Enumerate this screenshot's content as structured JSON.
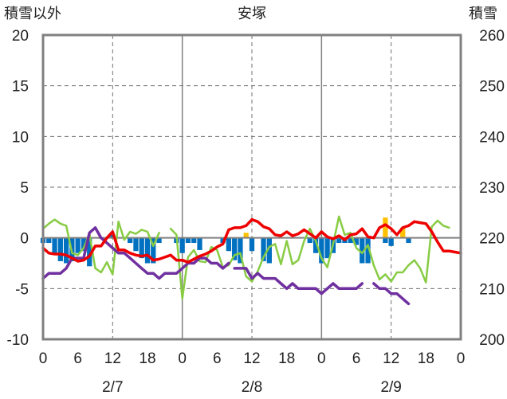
{
  "chart_data": {
    "type": "bar+line",
    "title": "安塚",
    "y_left_label": "積雪以外",
    "y_right_label": "積雪",
    "y_left_range": [
      -10,
      20
    ],
    "y_left_ticks": [
      "20",
      "15",
      "10",
      "5",
      "0",
      "-5",
      "-10"
    ],
    "y_right_range": [
      200,
      260
    ],
    "y_right_ticks": [
      "260",
      "250",
      "240",
      "230",
      "220",
      "210",
      "200"
    ],
    "x_range_hours": [
      0,
      72
    ],
    "x_tick_labels": [
      "0",
      "6",
      "12",
      "18",
      "0",
      "6",
      "12",
      "18",
      "0",
      "6",
      "12",
      "18",
      "0"
    ],
    "x_date_labels": [
      "2/7",
      "2/8",
      "2/9"
    ],
    "grid": "dashed",
    "colors": {
      "temperature": "#ee0000",
      "humidity_line": "#88cc44",
      "snow_depth": "#7030a0",
      "precip_bar": "#0070c0",
      "snowfall_bar": "#ffc000",
      "zero_line": "#808080",
      "frame": "#808080"
    },
    "series": [
      {
        "id": "temperature",
        "kind": "line",
        "axis": "left",
        "points": [
          [
            0,
            -1
          ],
          [
            1,
            -1.5
          ],
          [
            2,
            -1.6
          ],
          [
            3,
            -1.6
          ],
          [
            4,
            -1.7
          ],
          [
            5,
            -2
          ],
          [
            6,
            -2.3
          ],
          [
            7,
            -2.2
          ],
          [
            8,
            -1.8
          ],
          [
            9,
            -0.8
          ],
          [
            10,
            -0.8
          ],
          [
            11,
            0
          ],
          [
            12,
            0.6
          ],
          [
            13,
            -1.2
          ],
          [
            14,
            -1.2
          ],
          [
            15,
            -1.5
          ],
          [
            16,
            -1.7
          ],
          [
            17,
            -1.8
          ],
          [
            18,
            -1.7
          ],
          [
            19,
            -2.2
          ],
          [
            20,
            -2.1
          ],
          [
            21,
            -1.9
          ],
          [
            22,
            -1.7
          ],
          [
            23,
            -2.2
          ],
          [
            24,
            -2.2
          ],
          [
            25,
            -2.4
          ],
          [
            26,
            -2.1
          ],
          [
            27,
            -1.8
          ],
          [
            28,
            -1.6
          ],
          [
            29,
            -1.3
          ],
          [
            30,
            -0.9
          ],
          [
            31,
            -0.6
          ],
          [
            32,
            0.8
          ],
          [
            33,
            1
          ],
          [
            34,
            1
          ],
          [
            35,
            1.2
          ],
          [
            36,
            1.8
          ],
          [
            37,
            1.6
          ],
          [
            38,
            1.1
          ],
          [
            39,
            0.9
          ],
          [
            40,
            0.3
          ],
          [
            41,
            0.2
          ],
          [
            42,
            0.6
          ],
          [
            43,
            0.2
          ],
          [
            44,
            0.4
          ],
          [
            45,
            0.8
          ],
          [
            46,
            0.4
          ],
          [
            47,
            0
          ],
          [
            48,
            0.6
          ],
          [
            49,
            0.1
          ],
          [
            50,
            -0.1
          ],
          [
            51,
            0.2
          ],
          [
            52,
            -0.2
          ],
          [
            53,
            0.3
          ],
          [
            54,
            0.4
          ],
          [
            55,
            0.9
          ],
          [
            56,
            0.1
          ],
          [
            57,
            0
          ],
          [
            58,
            1
          ],
          [
            59,
            1.3
          ],
          [
            60,
            0.9
          ],
          [
            61,
            0.3
          ],
          [
            62,
            1
          ],
          [
            63,
            1.2
          ],
          [
            64,
            1.6
          ],
          [
            65,
            1.5
          ],
          [
            66,
            1.4
          ],
          [
            67,
            0.6
          ],
          [
            68,
            -0.4
          ],
          [
            69,
            -1.3
          ],
          [
            70,
            -1.3
          ],
          [
            71,
            -1.4
          ],
          [
            72,
            -1.5
          ]
        ]
      },
      {
        "id": "humidity_line",
        "kind": "line",
        "axis": "left",
        "segments": [
          [
            [
              0,
              0.9
            ],
            [
              1,
              1.4
            ],
            [
              2,
              1.8
            ],
            [
              3,
              1.4
            ],
            [
              4,
              1.2
            ],
            [
              5,
              -1.5
            ],
            [
              6,
              -1.7
            ],
            [
              7,
              -1
            ],
            [
              8,
              0.4
            ],
            [
              9,
              -3
            ],
            [
              10,
              -3.4
            ],
            [
              11,
              -2.4
            ],
            [
              12,
              -3.6
            ],
            [
              13,
              1.6
            ],
            [
              14,
              -0.2
            ],
            [
              15,
              0.6
            ],
            [
              16,
              0.4
            ],
            [
              17,
              0.8
            ],
            [
              18,
              0.6
            ],
            [
              19,
              -0.8
            ],
            [
              20,
              0.5
            ]
          ],
          [
            [
              22,
              0.9
            ],
            [
              23,
              0.3
            ],
            [
              24,
              -6
            ],
            [
              25,
              -1.9
            ],
            [
              26,
              -1.2
            ],
            [
              27,
              -2.3
            ],
            [
              28,
              -2.4
            ],
            [
              29,
              -0.9
            ],
            [
              30,
              -1.2
            ],
            [
              31,
              -2.9
            ],
            [
              32,
              -2.7
            ],
            [
              33,
              -1.7
            ],
            [
              34,
              -1.5
            ],
            [
              35,
              -3.8
            ],
            [
              36,
              -4.3
            ],
            [
              37,
              -3.3
            ],
            [
              38,
              -1.9
            ],
            [
              39,
              -0.9
            ],
            [
              40,
              -0.6
            ],
            [
              41,
              -2.6
            ],
            [
              42,
              -0.3
            ],
            [
              43,
              -2.6
            ],
            [
              44,
              -2.2
            ],
            [
              45,
              -0.3
            ],
            [
              46,
              0.9
            ],
            [
              47,
              -0.3
            ],
            [
              48,
              -2
            ],
            [
              49,
              -2.9
            ],
            [
              50,
              -0.6
            ],
            [
              51,
              2.1
            ],
            [
              52,
              0.3
            ],
            [
              53,
              0.5
            ],
            [
              54,
              -1
            ],
            [
              55,
              -1.5
            ],
            [
              56,
              -0.7
            ],
            [
              57,
              -2.7
            ],
            [
              58,
              -4.1
            ],
            [
              59,
              -3.6
            ],
            [
              60,
              -4.3
            ],
            [
              61,
              -3.4
            ],
            [
              62,
              -3.4
            ],
            [
              63,
              -2.7
            ],
            [
              64,
              -2.2
            ],
            [
              65,
              -3
            ],
            [
              66,
              -4.4
            ],
            [
              67,
              1.1
            ],
            [
              68,
              1.7
            ],
            [
              69,
              1.2
            ],
            [
              70,
              1
            ]
          ]
        ]
      },
      {
        "id": "snow_depth",
        "kind": "line",
        "axis": "right",
        "segments": [
          [
            [
              0,
              212
            ],
            [
              1,
              213
            ],
            [
              2,
              213
            ],
            [
              3,
              213
            ],
            [
              4,
              214
            ],
            [
              5,
              216
            ],
            [
              6,
              216
            ],
            [
              7,
              216
            ],
            [
              8,
              221
            ],
            [
              9,
              222
            ],
            [
              10,
              220
            ],
            [
              11,
              219
            ],
            [
              12,
              218
            ],
            [
              13,
              217
            ],
            [
              14,
              217
            ],
            [
              15,
              216
            ],
            [
              16,
              215
            ],
            [
              17,
              214
            ],
            [
              18,
              213
            ],
            [
              19,
              213
            ],
            [
              20,
              212
            ],
            [
              21,
              213
            ],
            [
              22,
              213
            ],
            [
              23,
              213
            ],
            [
              24,
              214
            ],
            [
              25,
              215
            ],
            [
              26,
              215
            ],
            [
              27,
              216
            ],
            [
              28,
              216
            ],
            [
              29,
              215
            ],
            [
              30,
              215
            ],
            [
              31,
              214
            ],
            [
              32,
              215
            ]
          ],
          [
            [
              33,
              214
            ],
            [
              34,
              214
            ],
            [
              35,
              214
            ],
            [
              36,
              212
            ],
            [
              37,
              213
            ],
            [
              38,
              212
            ],
            [
              39,
              212
            ],
            [
              40,
              212
            ],
            [
              41,
              211
            ],
            [
              42,
              210
            ],
            [
              43,
              211
            ],
            [
              44,
              210
            ],
            [
              45,
              210
            ],
            [
              46,
              210
            ],
            [
              47,
              210
            ],
            [
              48,
              209
            ],
            [
              49,
              210
            ],
            [
              50,
              211
            ],
            [
              51,
              210
            ],
            [
              52,
              210
            ],
            [
              53,
              210
            ],
            [
              54,
              210
            ],
            [
              55,
              211
            ]
          ],
          [
            [
              57,
              211
            ],
            [
              58,
              210
            ],
            [
              59,
              210
            ],
            [
              60,
              209
            ],
            [
              61,
              209
            ],
            [
              62,
              208
            ],
            [
              63,
              207
            ]
          ]
        ]
      },
      {
        "id": "precip_bar",
        "kind": "bar",
        "axis": "left",
        "bars": [
          [
            0,
            -0.5
          ],
          [
            1,
            -0.5
          ],
          [
            2,
            -1.5
          ],
          [
            3,
            -2.3
          ],
          [
            4,
            -2.5
          ],
          [
            5,
            -2.3
          ],
          [
            6,
            -1.5
          ],
          [
            7,
            -1.3
          ],
          [
            8,
            -2.8
          ],
          [
            12,
            0.3
          ],
          [
            15,
            -0.5
          ],
          [
            16,
            -1.3
          ],
          [
            17,
            -2
          ],
          [
            18,
            -2.5
          ],
          [
            19,
            -2.5
          ],
          [
            20,
            -0.5
          ],
          [
            23,
            -0.5
          ],
          [
            24,
            -1.5
          ],
          [
            25,
            -0.5
          ],
          [
            26,
            -0.5
          ],
          [
            27,
            -1.2
          ],
          [
            31,
            -0.5
          ],
          [
            32,
            -1.3
          ],
          [
            33,
            -2.2
          ],
          [
            34,
            -2.5
          ],
          [
            36,
            -1.3
          ],
          [
            38,
            -2.3
          ],
          [
            39,
            -2.5
          ],
          [
            46,
            -0.5
          ],
          [
            47,
            -1.5
          ],
          [
            48,
            -2.5
          ],
          [
            49,
            -2
          ],
          [
            50,
            -1.5
          ],
          [
            51,
            -0.5
          ],
          [
            52,
            -0.5
          ],
          [
            53,
            -0.5
          ],
          [
            54,
            -0.7
          ],
          [
            55,
            -2.5
          ],
          [
            56,
            -2.5
          ],
          [
            59,
            -0.5
          ],
          [
            60,
            -0.8
          ],
          [
            63,
            -0.5
          ]
        ],
        "bar_width_hours": 1
      },
      {
        "id": "snowfall_bar",
        "kind": "bar",
        "axis": "left",
        "bars": [
          [
            35,
            0.5
          ],
          [
            59,
            2
          ],
          [
            62,
            1
          ]
        ],
        "bar_width_hours": 1
      }
    ]
  }
}
